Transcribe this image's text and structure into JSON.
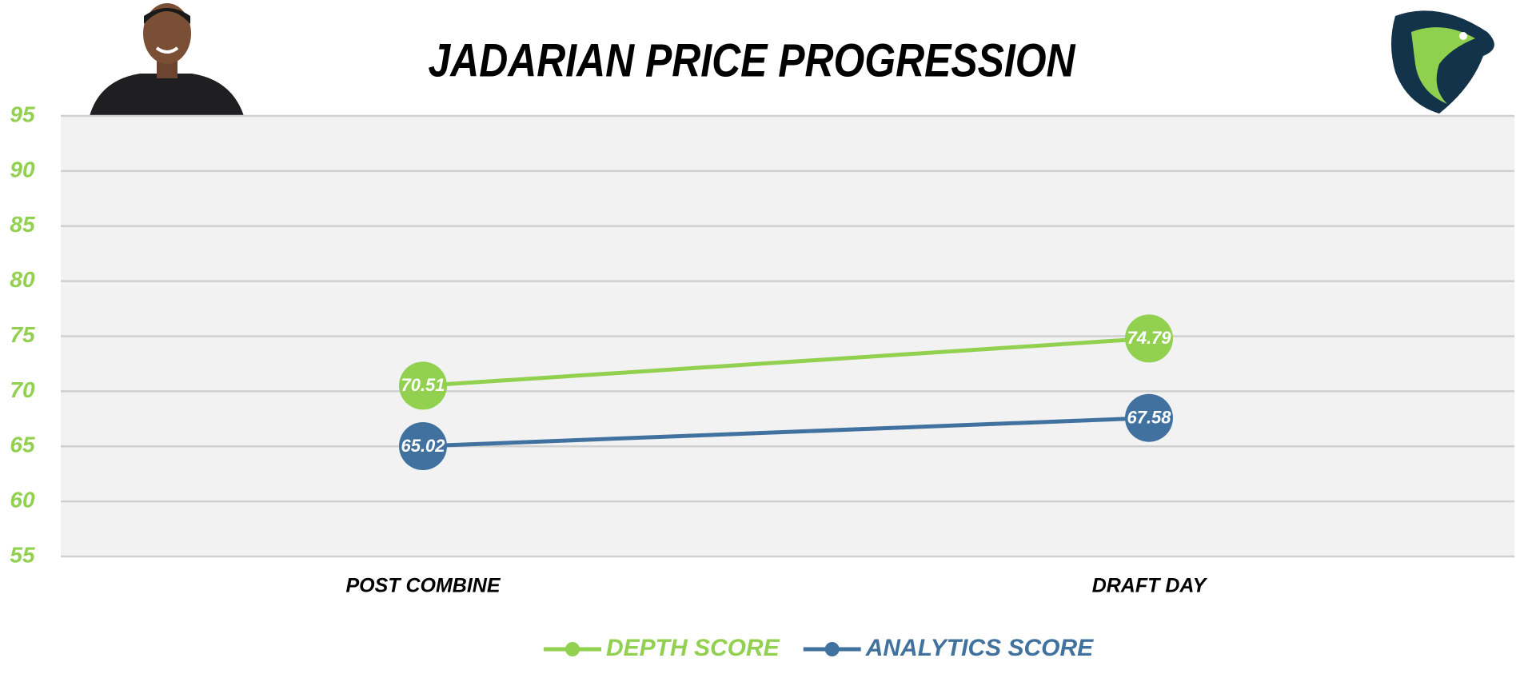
{
  "chart_data": {
    "type": "line",
    "title": "JADARIAN PRICE PROGRESSION",
    "categories": [
      "POST COMBINE",
      "DRAFT DAY"
    ],
    "series": [
      {
        "name": "DEPTH SCORE",
        "color": "#92d050",
        "values": [
          70.51,
          74.79
        ]
      },
      {
        "name": "ANALYTICS SCORE",
        "color": "#41729f",
        "values": [
          65.02,
          67.58
        ]
      }
    ],
    "ylim": [
      55,
      95
    ],
    "yticks": [
      55,
      60,
      65,
      70,
      75,
      80,
      85,
      90,
      95
    ],
    "grid": true,
    "ytick_color": "#92d050",
    "legend": "bottom"
  }
}
